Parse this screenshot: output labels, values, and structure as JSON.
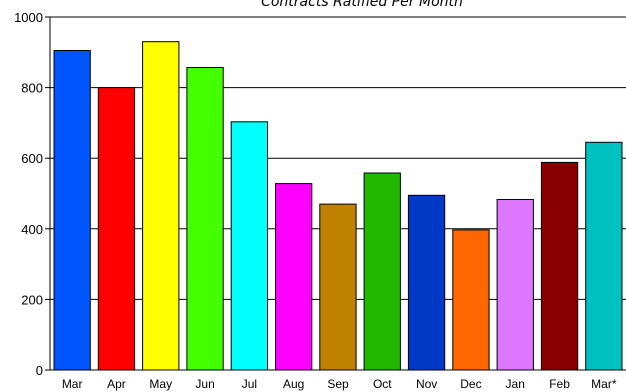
{
  "chart_data": {
    "type": "bar",
    "title": "Contracts Ratified Per Month",
    "xlabel": "",
    "ylabel": "",
    "ylim": [
      0,
      1000
    ],
    "yticks": [
      "0",
      "200",
      "400",
      "600",
      "800",
      "1000"
    ],
    "grid": true,
    "legend": "none",
    "categories": [
      "Mar",
      "Apr",
      "May",
      "Jun",
      "Jul",
      "Aug",
      "Sep",
      "Oct",
      "Nov",
      "Dec",
      "Jan",
      "Feb",
      "Mar*"
    ],
    "values": [
      905,
      800,
      930,
      857,
      703,
      528,
      470,
      558,
      495,
      397,
      483,
      588,
      645
    ],
    "colors": [
      "#0055ff",
      "#ff0000",
      "#ffff00",
      "#44ff00",
      "#00ffff",
      "#ff00ff",
      "#c08000",
      "#22b800",
      "#0039c4",
      "#ff6600",
      "#dd77ff",
      "#880000",
      "#00c0c0"
    ]
  }
}
